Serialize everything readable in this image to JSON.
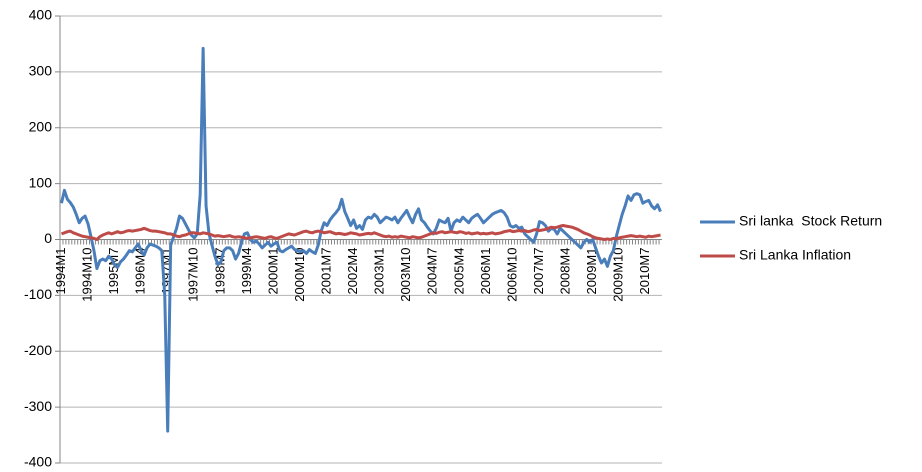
{
  "chart_data": {
    "type": "line",
    "categories": [
      "1994M1",
      null,
      null,
      null,
      null,
      null,
      null,
      null,
      null,
      "1994M10",
      null,
      null,
      null,
      null,
      null,
      null,
      null,
      null,
      "1995M7",
      null,
      null,
      null,
      null,
      null,
      null,
      null,
      null,
      "1996M4",
      null,
      null,
      null,
      null,
      null,
      null,
      null,
      null,
      "1997M1",
      null,
      null,
      null,
      null,
      null,
      null,
      null,
      null,
      "1997M10",
      null,
      null,
      null,
      null,
      null,
      null,
      null,
      null,
      "1998M7",
      null,
      null,
      null,
      null,
      null,
      null,
      null,
      null,
      "1999M4",
      null,
      null,
      null,
      null,
      null,
      null,
      null,
      null,
      "2000M1",
      null,
      null,
      null,
      null,
      null,
      null,
      null,
      null,
      "2000M10",
      null,
      null,
      null,
      null,
      null,
      null,
      null,
      null,
      "2001M7",
      null,
      null,
      null,
      null,
      null,
      null,
      null,
      null,
      "2002M4",
      null,
      null,
      null,
      null,
      null,
      null,
      null,
      null,
      "2003M1",
      null,
      null,
      null,
      null,
      null,
      null,
      null,
      null,
      "2003M10",
      null,
      null,
      null,
      null,
      null,
      null,
      null,
      null,
      "2004M7",
      null,
      null,
      null,
      null,
      null,
      null,
      null,
      null,
      "2005M4",
      null,
      null,
      null,
      null,
      null,
      null,
      null,
      null,
      "2006M1",
      null,
      null,
      null,
      null,
      null,
      null,
      null,
      null,
      "2006M10",
      null,
      null,
      null,
      null,
      null,
      null,
      null,
      null,
      "2007M7",
      null,
      null,
      null,
      null,
      null,
      null,
      null,
      null,
      "2008M4",
      null,
      null,
      null,
      null,
      null,
      null,
      null,
      null,
      "2009M1",
      null,
      null,
      null,
      null,
      null,
      null,
      null,
      null,
      "2009M10",
      null,
      null,
      null,
      null,
      null,
      null,
      null,
      null,
      "2010M7",
      null,
      null,
      null,
      null,
      null
    ],
    "series": [
      {
        "name": "Sri lanka  Stock Return",
        "color": "#4a7ebb",
        "values": [
          65,
          88,
          72,
          66,
          58,
          45,
          30,
          38,
          42,
          28,
          5,
          -20,
          -52,
          -38,
          -35,
          -38,
          -30,
          -35,
          -45,
          -50,
          -40,
          -35,
          -28,
          -20,
          -22,
          -15,
          -8,
          -20,
          -28,
          -15,
          -8,
          -10,
          -12,
          -15,
          -20,
          -100,
          -343,
          -10,
          5,
          20,
          42,
          38,
          28,
          18,
          8,
          3,
          10,
          80,
          342,
          60,
          10,
          -10,
          -30,
          -45,
          -40,
          -20,
          -15,
          -15,
          -20,
          -35,
          -25,
          -5,
          10,
          12,
          0,
          -5,
          -3,
          -8,
          -15,
          -10,
          -5,
          -12,
          -8,
          -5,
          -20,
          -22,
          -18,
          -15,
          -12,
          -18,
          -20,
          -22,
          -20,
          -25,
          -18,
          -22,
          -25,
          -10,
          15,
          30,
          25,
          35,
          42,
          48,
          55,
          72,
          50,
          38,
          25,
          35,
          20,
          25,
          18,
          35,
          40,
          38,
          45,
          40,
          30,
          35,
          40,
          38,
          35,
          40,
          30,
          38,
          45,
          52,
          40,
          30,
          45,
          55,
          35,
          30,
          22,
          15,
          10,
          20,
          35,
          32,
          30,
          38,
          15,
          30,
          35,
          32,
          40,
          35,
          30,
          38,
          42,
          45,
          38,
          30,
          35,
          40,
          45,
          48,
          50,
          52,
          48,
          40,
          25,
          22,
          25,
          20,
          22,
          10,
          5,
          0,
          -5,
          10,
          32,
          30,
          25,
          15,
          20,
          18,
          10,
          20,
          15,
          10,
          5,
          0,
          -5,
          -10,
          -15,
          -5,
          0,
          -5,
          0,
          -15,
          -30,
          -42,
          -35,
          -48,
          -30,
          -20,
          5,
          25,
          45,
          60,
          78,
          70,
          80,
          82,
          80,
          65,
          68,
          70,
          60,
          55,
          62,
          50
        ]
      },
      {
        "name": "Sri Lanka Inflation",
        "color": "#be4b48",
        "values": [
          10,
          12,
          14,
          15,
          12,
          10,
          8,
          6,
          5,
          4,
          3,
          2,
          0,
          5,
          8,
          10,
          12,
          10,
          12,
          14,
          12,
          13,
          15,
          16,
          15,
          16,
          17,
          18,
          20,
          18,
          16,
          15,
          15,
          14,
          13,
          12,
          10,
          10,
          8,
          6,
          5,
          7,
          8,
          10,
          12,
          12,
          11,
          10,
          12,
          11,
          10,
          8,
          6,
          7,
          6,
          5,
          6,
          7,
          5,
          4,
          5,
          4,
          3,
          2,
          3,
          4,
          5,
          4,
          3,
          2,
          4,
          5,
          3,
          2,
          4,
          6,
          8,
          10,
          9,
          8,
          10,
          12,
          14,
          15,
          13,
          12,
          14,
          15,
          14,
          12,
          13,
          14,
          12,
          10,
          11,
          10,
          9,
          10,
          12,
          11,
          10,
          8,
          9,
          10,
          11,
          10,
          12,
          10,
          8,
          6,
          5,
          6,
          4,
          5,
          4,
          6,
          5,
          4,
          3,
          5,
          4,
          3,
          4,
          6,
          8,
          10,
          12,
          11,
          13,
          14,
          12,
          13,
          14,
          13,
          12,
          14,
          13,
          11,
          12,
          10,
          11,
          12,
          10,
          11,
          10,
          11,
          12,
          10,
          11,
          12,
          14,
          15,
          16,
          14,
          15,
          16,
          15,
          16,
          14,
          15,
          17,
          18,
          16,
          17,
          18,
          20,
          22,
          21,
          22,
          24,
          25,
          24,
          23,
          22,
          20,
          18,
          15,
          12,
          10,
          8,
          5,
          3,
          2,
          1,
          0,
          1,
          0,
          2,
          1,
          3,
          4,
          5,
          6,
          7,
          6,
          5,
          6,
          5,
          4,
          6,
          5,
          6,
          7,
          8
        ]
      }
    ],
    "ylim": [
      -400,
      400
    ],
    "yticks": [
      -400,
      -300,
      -200,
      -100,
      0,
      100,
      200,
      300,
      400
    ],
    "grid": true,
    "legend": "right"
  }
}
